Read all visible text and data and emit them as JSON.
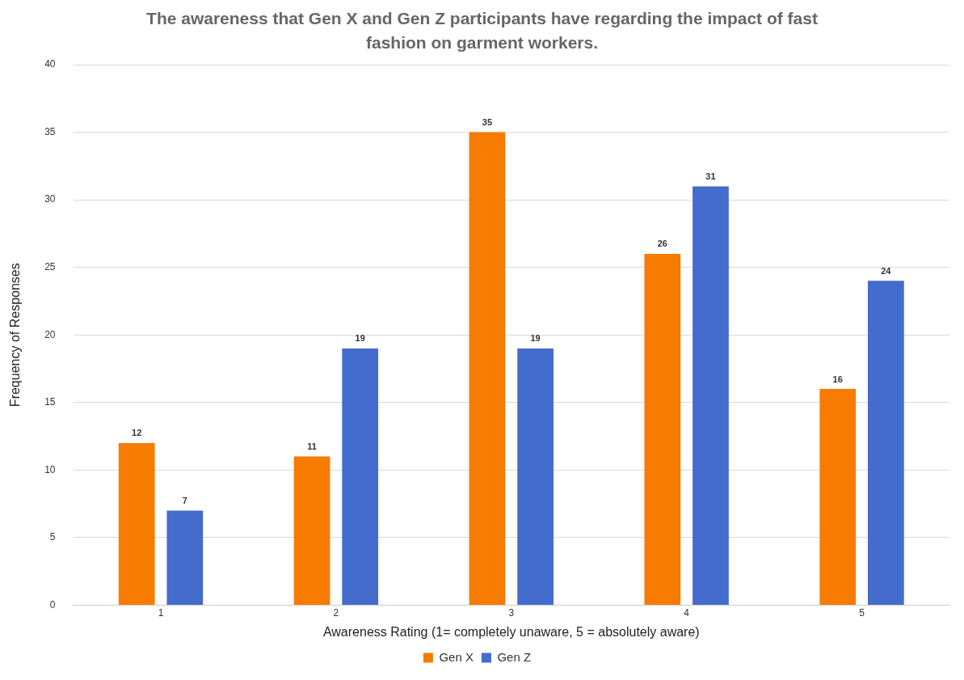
{
  "chart_data": {
    "type": "bar",
    "title": "The awareness that Gen X and Gen Z participants have regarding the impact of fast fashion on garment workers.",
    "xlabel": "Awareness Rating (1= completely unaware, 5 = absolutely aware)",
    "ylabel": "Frequency of Responses",
    "categories": [
      "1",
      "2",
      "3",
      "4",
      "5"
    ],
    "series": [
      {
        "name": "Gen X",
        "color": "#f77b00",
        "values": [
          12,
          11,
          35,
          26,
          16
        ]
      },
      {
        "name": "Gen Z",
        "color": "#436ccc",
        "values": [
          7,
          19,
          19,
          31,
          24
        ]
      }
    ],
    "ylim": [
      0,
      40
    ],
    "yticks": [
      0,
      5,
      10,
      15,
      20,
      25,
      30,
      35,
      40
    ],
    "grid": "y",
    "legend": "bottom",
    "data_labels": true
  }
}
